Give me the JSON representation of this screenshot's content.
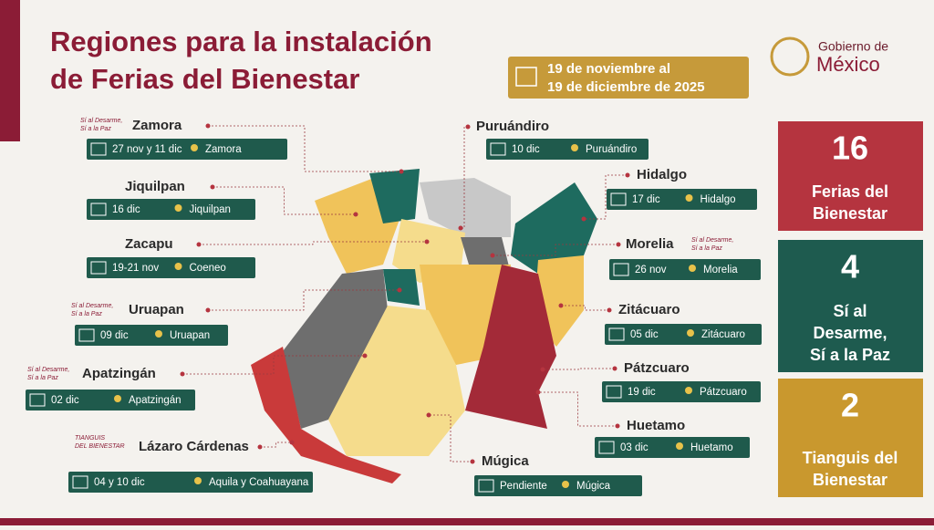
{
  "title": [
    "Regiones para la instalación",
    "de Ferias del Bienestar"
  ],
  "date_range": [
    "19 de noviembre al",
    "19 de diciembre de 2025"
  ],
  "logo": [
    "Gobierno de",
    "México"
  ],
  "regions": [
    {
      "name": "Zamora",
      "date": "27 nov y 11 dic",
      "place": "Zamora",
      "badge": [
        "Sí al Desarme,",
        "Sí a la Paz"
      ]
    },
    {
      "name": "Jiquilpan",
      "date": "16 dic",
      "place": "Jiquilpan"
    },
    {
      "name": "Zacapu",
      "date": "19-21 nov",
      "place": "Coeneo"
    },
    {
      "name": "Uruapan",
      "date": "09 dic",
      "place": "Uruapan",
      "badge": [
        "Sí al Desarme,",
        "Sí a la Paz"
      ]
    },
    {
      "name": "Apatzingán",
      "date": "02 dic",
      "place": "Apatzingán",
      "badge": [
        "Sí al Desarme,",
        "Sí a la Paz"
      ]
    },
    {
      "name": "Lázaro Cárdenas",
      "date": "04 y 10 dic",
      "place": "Aquila y Coahuayana",
      "badge": [
        "TIANGUIS",
        "DEL BIENESTAR"
      ]
    },
    {
      "name": "Puruándiro",
      "date": "10 dic",
      "place": "Puruándiro"
    },
    {
      "name": "Hidalgo",
      "date": "17 dic",
      "place": "Hidalgo"
    },
    {
      "name": "Morelia",
      "date": "26 nov",
      "place": "Morelia",
      "badge": [
        "Sí al Desarme,",
        "Sí a la Paz"
      ]
    },
    {
      "name": "Zitácuaro",
      "date": "05 dic",
      "place": "Zitácuaro"
    },
    {
      "name": "Pátzcuaro",
      "date": "19 dic",
      "place": "Pátzcuaro"
    },
    {
      "name": "Huetamo",
      "date": "03 dic",
      "place": "Huetamo"
    },
    {
      "name": "Múgica",
      "date": "Pendiente",
      "place": "Múgica"
    }
  ],
  "stats": [
    {
      "number": 16,
      "label": [
        "Ferias del",
        "Bienestar"
      ]
    },
    {
      "number": 4,
      "label": [
        "Sí al",
        "Desarme,",
        "Sí a la Paz"
      ]
    },
    {
      "number": 2,
      "label": [
        "Tianguis del",
        "Bienestar"
      ]
    }
  ]
}
